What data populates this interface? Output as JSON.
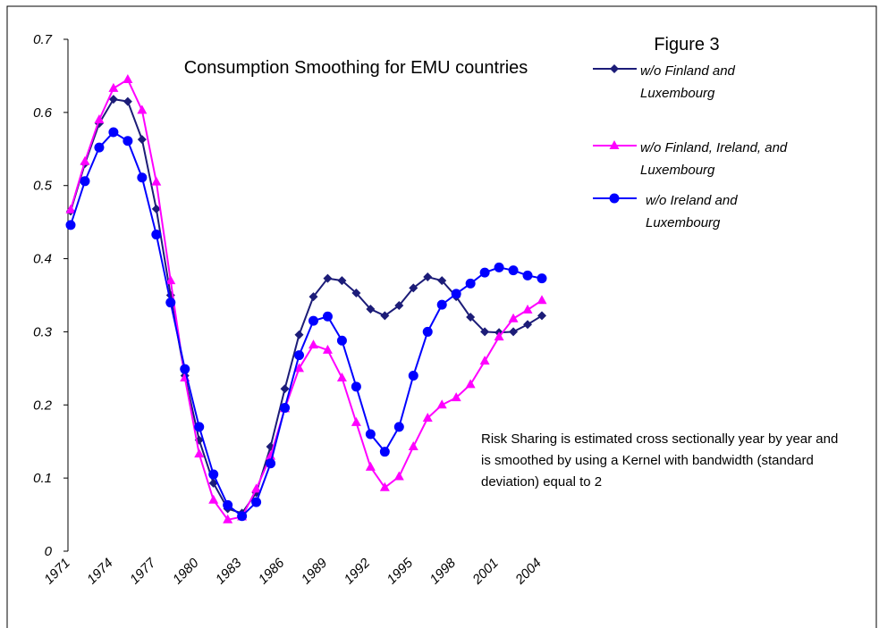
{
  "chart_data": {
    "type": "line",
    "title": "Consumption Smoothing for EMU countries",
    "figure_label": "Figure 3",
    "annotation": "Risk Sharing is estimated cross sectionally year by year and is smoothed by using a Kernel with bandwidth (standard deviation) equal to 2",
    "x": [
      1971,
      1972,
      1973,
      1974,
      1975,
      1976,
      1977,
      1978,
      1979,
      1980,
      1981,
      1982,
      1983,
      1984,
      1985,
      1986,
      1987,
      1988,
      1989,
      1990,
      1991,
      1992,
      1993,
      1994,
      1995,
      1996,
      1997,
      1998,
      1999,
      2000,
      2001,
      2002,
      2003,
      2004
    ],
    "xlim": [
      1971,
      2004
    ],
    "xticks": [
      1971,
      1974,
      1977,
      1980,
      1983,
      1986,
      1989,
      1992,
      1995,
      1998,
      2001,
      2004
    ],
    "ylim": [
      0,
      0.7
    ],
    "yticks": [
      0,
      0.1,
      0.2,
      0.3,
      0.4,
      0.5,
      0.6,
      0.7
    ],
    "series": [
      {
        "name": "w/o Finland and Luxembourg",
        "color": "#1c1c78",
        "marker": "diamond",
        "values": [
          0.465,
          0.53,
          0.585,
          0.618,
          0.615,
          0.563,
          0.468,
          0.35,
          0.24,
          0.152,
          0.093,
          0.058,
          0.052,
          0.08,
          0.143,
          0.222,
          0.296,
          0.348,
          0.373,
          0.37,
          0.353,
          0.331,
          0.322,
          0.336,
          0.36,
          0.375,
          0.37,
          0.348,
          0.32,
          0.3,
          0.299,
          0.3,
          0.31,
          0.322
        ]
      },
      {
        "name": "w/o Finland, Ireland, and Luxembourg",
        "color": "#ff00ff",
        "marker": "triangle",
        "values": [
          0.467,
          0.533,
          0.59,
          0.633,
          0.645,
          0.603,
          0.505,
          0.37,
          0.237,
          0.133,
          0.07,
          0.043,
          0.047,
          0.085,
          0.13,
          0.195,
          0.25,
          0.282,
          0.275,
          0.237,
          0.176,
          0.115,
          0.087,
          0.102,
          0.143,
          0.182,
          0.2,
          0.21,
          0.228,
          0.26,
          0.293,
          0.318,
          0.33,
          0.343
        ]
      },
      {
        "name": "w/o Ireland  and Luxembourg",
        "color": "#0000ff",
        "marker": "circle",
        "values": [
          0.446,
          0.506,
          0.552,
          0.573,
          0.561,
          0.511,
          0.433,
          0.34,
          0.249,
          0.17,
          0.105,
          0.063,
          0.048,
          0.067,
          0.12,
          0.196,
          0.268,
          0.315,
          0.321,
          0.288,
          0.225,
          0.16,
          0.136,
          0.17,
          0.24,
          0.3,
          0.337,
          0.352,
          0.366,
          0.381,
          0.388,
          0.384,
          0.377,
          0.373
        ]
      }
    ]
  }
}
